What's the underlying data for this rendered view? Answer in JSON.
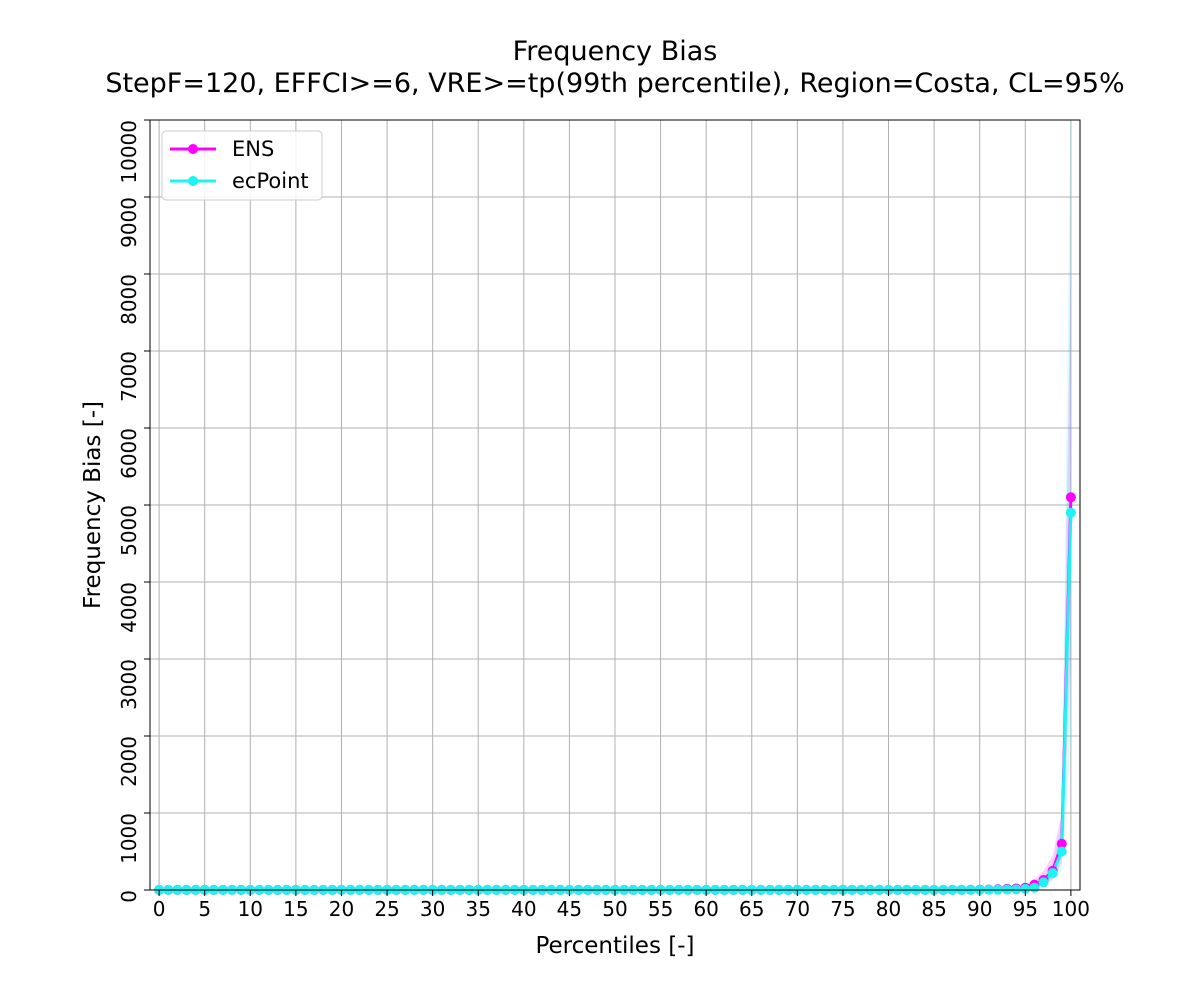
{
  "chart_data": {
    "type": "line",
    "title": "Frequency Bias",
    "subtitle": "StepF=120, EFFCI>=6, VRE>=tp(99th percentile), Region=Costa, CL=95%",
    "xlabel": "Percentiles [-]",
    "ylabel": "Frequency Bias [-]",
    "xlim": [
      -1,
      101
    ],
    "ylim": [
      0,
      10000
    ],
    "xticks": [
      0,
      5,
      10,
      15,
      20,
      25,
      30,
      35,
      40,
      45,
      50,
      55,
      60,
      65,
      70,
      75,
      80,
      85,
      90,
      95,
      100
    ],
    "yticks": [
      0,
      1000,
      2000,
      3000,
      4000,
      5000,
      6000,
      7000,
      8000,
      9000,
      10000
    ],
    "xtick_labels": [
      "0",
      "5",
      "10",
      "15",
      "20",
      "25",
      "30",
      "35",
      "40",
      "45",
      "50",
      "55",
      "60",
      "65",
      "70",
      "75",
      "80",
      "85",
      "90",
      "95",
      "100"
    ],
    "ytick_labels": [
      "0",
      "1000",
      "2000",
      "3000",
      "4000",
      "5000",
      "6000",
      "7000",
      "8000",
      "9000",
      "10000"
    ],
    "grid": true,
    "legend_position": "top-left",
    "series": [
      {
        "name": "ENS",
        "color": "#ff00ff",
        "x": [
          0,
          1,
          2,
          3,
          4,
          5,
          6,
          7,
          8,
          9,
          10,
          11,
          12,
          13,
          14,
          15,
          16,
          17,
          18,
          19,
          20,
          21,
          22,
          23,
          24,
          25,
          26,
          27,
          28,
          29,
          30,
          31,
          32,
          33,
          34,
          35,
          36,
          37,
          38,
          39,
          40,
          41,
          42,
          43,
          44,
          45,
          46,
          47,
          48,
          49,
          50,
          51,
          52,
          53,
          54,
          55,
          56,
          57,
          58,
          59,
          60,
          61,
          62,
          63,
          64,
          65,
          66,
          67,
          68,
          69,
          70,
          71,
          72,
          73,
          74,
          75,
          76,
          77,
          78,
          79,
          80,
          81,
          82,
          83,
          84,
          85,
          86,
          87,
          88,
          89,
          90,
          91,
          92,
          93,
          94,
          95,
          96,
          97,
          98,
          99,
          100
        ],
        "values": [
          1,
          1,
          1,
          1,
          1,
          1,
          1,
          1,
          1,
          1,
          1,
          1,
          1,
          1,
          1,
          1,
          1,
          1,
          1,
          1,
          1,
          1,
          1,
          1,
          1,
          1,
          1,
          1,
          1,
          1,
          1,
          1,
          1,
          1,
          1,
          1,
          1,
          1,
          1,
          1,
          1,
          1,
          1,
          1,
          1,
          1,
          1,
          1,
          1,
          1,
          1,
          1,
          1,
          1,
          1,
          1,
          1,
          1,
          1,
          1,
          1,
          1,
          1,
          1,
          1,
          1,
          1,
          1,
          1,
          1,
          1,
          1,
          1,
          1,
          1,
          1,
          1,
          1,
          1,
          1,
          1,
          1,
          1,
          1,
          1,
          1,
          1,
          2,
          2,
          3,
          4,
          6,
          10,
          15,
          20,
          30,
          70,
          130,
          250,
          600,
          5100
        ],
        "ci_low": [
          1,
          1,
          1,
          1,
          1,
          1,
          1,
          1,
          1,
          1,
          1,
          1,
          1,
          1,
          1,
          1,
          1,
          1,
          1,
          1,
          1,
          1,
          1,
          1,
          1,
          1,
          1,
          1,
          1,
          1,
          1,
          1,
          1,
          1,
          1,
          1,
          1,
          1,
          1,
          1,
          1,
          1,
          1,
          1,
          1,
          1,
          1,
          1,
          1,
          1,
          1,
          1,
          1,
          1,
          1,
          1,
          1,
          1,
          1,
          1,
          1,
          1,
          1,
          1,
          1,
          1,
          1,
          1,
          1,
          1,
          1,
          1,
          1,
          1,
          1,
          1,
          1,
          1,
          1,
          1,
          1,
          1,
          1,
          1,
          1,
          1,
          1,
          1,
          1,
          1,
          2,
          3,
          5,
          8,
          10,
          15,
          35,
          70,
          140,
          350,
          3000
        ],
        "ci_high": [
          2,
          2,
          2,
          2,
          2,
          2,
          2,
          2,
          2,
          2,
          2,
          2,
          2,
          2,
          2,
          2,
          2,
          2,
          2,
          2,
          2,
          2,
          2,
          2,
          2,
          2,
          2,
          2,
          2,
          2,
          2,
          2,
          2,
          2,
          2,
          2,
          2,
          2,
          2,
          2,
          2,
          2,
          2,
          2,
          2,
          2,
          2,
          2,
          2,
          2,
          2,
          2,
          2,
          2,
          2,
          2,
          2,
          2,
          2,
          2,
          2,
          2,
          2,
          2,
          2,
          2,
          2,
          2,
          2,
          2,
          2,
          2,
          2,
          2,
          2,
          2,
          2,
          2,
          2,
          2,
          2,
          2,
          2,
          2,
          2,
          2,
          2,
          4,
          4,
          6,
          8,
          12,
          20,
          30,
          45,
          70,
          140,
          250,
          450,
          1000,
          8200
        ]
      },
      {
        "name": "ecPoint",
        "color": "#1ff2f2",
        "x": [
          0,
          1,
          2,
          3,
          4,
          5,
          6,
          7,
          8,
          9,
          10,
          11,
          12,
          13,
          14,
          15,
          16,
          17,
          18,
          19,
          20,
          21,
          22,
          23,
          24,
          25,
          26,
          27,
          28,
          29,
          30,
          31,
          32,
          33,
          34,
          35,
          36,
          37,
          38,
          39,
          40,
          41,
          42,
          43,
          44,
          45,
          46,
          47,
          48,
          49,
          50,
          51,
          52,
          53,
          54,
          55,
          56,
          57,
          58,
          59,
          60,
          61,
          62,
          63,
          64,
          65,
          66,
          67,
          68,
          69,
          70,
          71,
          72,
          73,
          74,
          75,
          76,
          77,
          78,
          79,
          80,
          81,
          82,
          83,
          84,
          85,
          86,
          87,
          88,
          89,
          90,
          91,
          92,
          93,
          94,
          95,
          96,
          97,
          98,
          99,
          100
        ],
        "values": [
          1,
          1,
          1,
          1,
          1,
          1,
          1,
          1,
          1,
          1,
          1,
          1,
          1,
          1,
          1,
          1,
          1,
          1,
          1,
          1,
          1,
          1,
          1,
          1,
          1,
          1,
          1,
          1,
          1,
          1,
          1,
          1,
          1,
          1,
          1,
          1,
          1,
          1,
          1,
          1,
          1,
          1,
          1,
          1,
          1,
          1,
          1,
          1,
          1,
          1,
          1,
          1,
          1,
          1,
          1,
          1,
          1,
          1,
          1,
          1,
          1,
          1,
          1,
          1,
          1,
          1,
          1,
          1,
          1,
          1,
          1,
          1,
          1,
          1,
          1,
          1,
          1,
          1,
          1,
          1,
          1,
          1,
          1,
          1,
          1,
          1,
          1,
          1,
          1,
          2,
          2,
          3,
          4,
          6,
          8,
          15,
          30,
          100,
          220,
          500,
          4900
        ],
        "ci_low": [
          1,
          1,
          1,
          1,
          1,
          1,
          1,
          1,
          1,
          1,
          1,
          1,
          1,
          1,
          1,
          1,
          1,
          1,
          1,
          1,
          1,
          1,
          1,
          1,
          1,
          1,
          1,
          1,
          1,
          1,
          1,
          1,
          1,
          1,
          1,
          1,
          1,
          1,
          1,
          1,
          1,
          1,
          1,
          1,
          1,
          1,
          1,
          1,
          1,
          1,
          1,
          1,
          1,
          1,
          1,
          1,
          1,
          1,
          1,
          1,
          1,
          1,
          1,
          1,
          1,
          1,
          1,
          1,
          1,
          1,
          1,
          1,
          1,
          1,
          1,
          1,
          1,
          1,
          1,
          1,
          1,
          1,
          1,
          1,
          1,
          1,
          1,
          1,
          1,
          1,
          1,
          2,
          2,
          3,
          4,
          8,
          15,
          50,
          120,
          250,
          2000
        ],
        "ci_high": [
          2,
          2,
          2,
          2,
          2,
          2,
          2,
          2,
          2,
          2,
          2,
          2,
          2,
          2,
          2,
          2,
          2,
          2,
          2,
          2,
          2,
          2,
          2,
          2,
          2,
          2,
          2,
          2,
          2,
          2,
          2,
          2,
          2,
          2,
          2,
          2,
          2,
          2,
          2,
          2,
          2,
          2,
          2,
          2,
          2,
          2,
          2,
          2,
          2,
          2,
          2,
          2,
          2,
          2,
          2,
          2,
          2,
          2,
          2,
          2,
          2,
          2,
          2,
          2,
          2,
          2,
          2,
          2,
          2,
          2,
          2,
          2,
          2,
          2,
          2,
          2,
          2,
          2,
          2,
          2,
          2,
          2,
          2,
          2,
          2,
          2,
          2,
          2,
          2,
          4,
          4,
          5,
          7,
          10,
          14,
          25,
          50,
          160,
          350,
          900,
          10500
        ]
      }
    ]
  }
}
